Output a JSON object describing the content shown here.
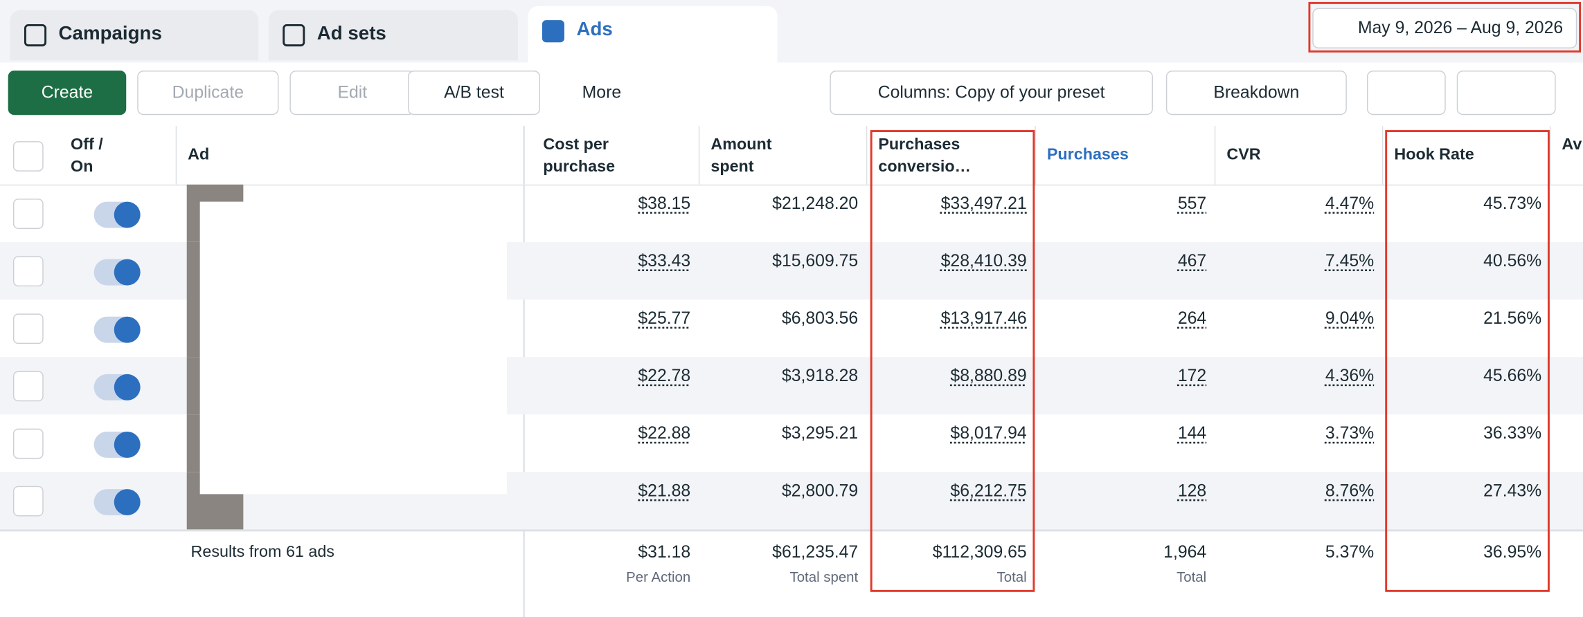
{
  "tabs": [
    "Campaigns",
    "Ad sets",
    "Ads"
  ],
  "date_range": "May 9, 2026 – Aug 9, 2026",
  "toolbar": {
    "create": "Create",
    "duplicate": "Duplicate",
    "edit": "Edit",
    "ab_test": "A/B test",
    "more": "More",
    "columns": "Columns: Copy of your preset",
    "breakdown": "Breakdown"
  },
  "table": {
    "columns": [
      "Off / On",
      "Ad",
      "Cost per purchase",
      "Amount spent",
      "Purchases conversio…",
      "Purchases",
      "CVR",
      "Hook Rate",
      "Av pu"
    ],
    "rows": [
      [
        "$38.15",
        "$21,248.20",
        "$33,497.21",
        "557",
        "4.47%",
        "45.73%"
      ],
      [
        "$33.43",
        "$15,609.75",
        "$28,410.39",
        "467",
        "7.45%",
        "40.56%"
      ],
      [
        "$25.77",
        "$6,803.56",
        "$13,917.46",
        "264",
        "9.04%",
        "21.56%"
      ],
      [
        "$22.78",
        "$3,918.28",
        "$8,880.89",
        "172",
        "4.36%",
        "45.66%"
      ],
      [
        "$22.88",
        "$3,295.21",
        "$8,017.94",
        "144",
        "3.73%",
        "36.33%"
      ],
      [
        "$21.88",
        "$2,800.79",
        "$6,212.75",
        "128",
        "8.76%",
        "27.43%"
      ]
    ],
    "footer": {
      "label": "Results from 61 ads",
      "cells": [
        {
          "value": "$31.18",
          "sub": "Per Action"
        },
        {
          "value": "$61,235.47",
          "sub": "Total spent"
        },
        {
          "value": "$112,309.65",
          "sub": "Total"
        },
        {
          "value": "1,964",
          "sub": "Total"
        },
        {
          "value": "5.37%"
        },
        {
          "value": "36.95%"
        }
      ]
    }
  }
}
